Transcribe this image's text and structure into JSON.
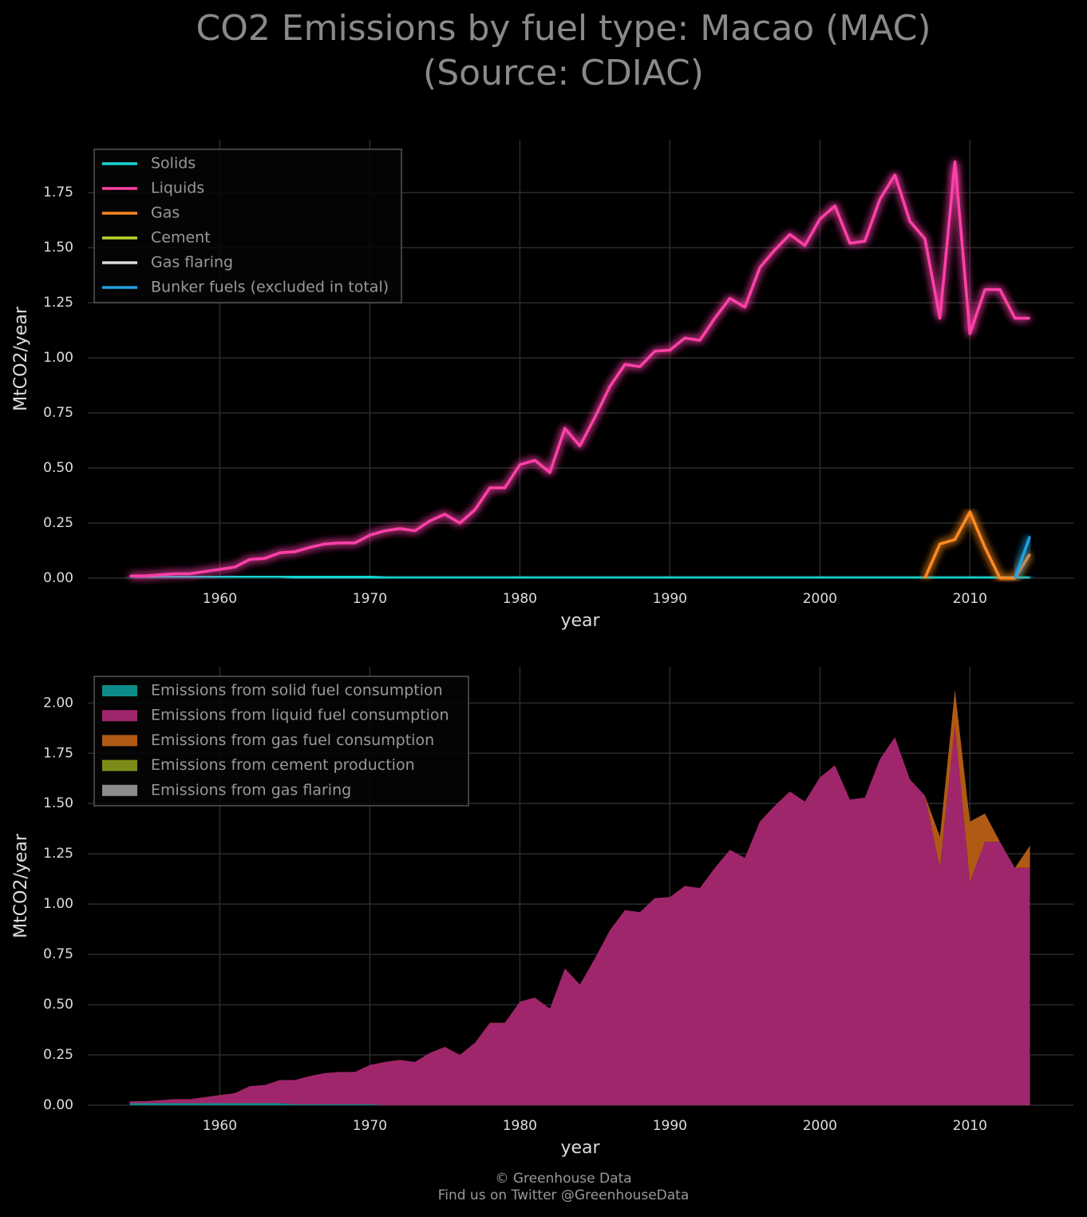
{
  "title_lines": [
    "CO2 Emissions by fuel type: Macao (MAC)",
    "(Source: CDIAC)"
  ],
  "footer_lines": [
    "© Greenhouse Data",
    "Find us on Twitter @GreenhouseData"
  ],
  "chart_data": [
    {
      "type": "line",
      "xlabel": "year",
      "ylabel": "MtCO2/year",
      "x": [
        1954,
        1955,
        1956,
        1957,
        1958,
        1959,
        1960,
        1961,
        1962,
        1963,
        1964,
        1965,
        1966,
        1967,
        1968,
        1969,
        1970,
        1971,
        1972,
        1973,
        1974,
        1975,
        1976,
        1977,
        1978,
        1979,
        1980,
        1981,
        1982,
        1983,
        1984,
        1985,
        1986,
        1987,
        1988,
        1989,
        1990,
        1991,
        1992,
        1993,
        1994,
        1995,
        1996,
        1997,
        1998,
        1999,
        2000,
        2001,
        2002,
        2003,
        2004,
        2005,
        2006,
        2007,
        2008,
        2009,
        2010,
        2011,
        2012,
        2013,
        2014
      ],
      "xlim": [
        1951.2,
        2016.9
      ],
      "ylim": [
        0,
        1.99
      ],
      "xticks": [
        1960,
        1970,
        1980,
        1990,
        2000,
        2010
      ],
      "yticks": [
        {
          "value": 0,
          "label": "0.00"
        },
        {
          "value": 0.25,
          "label": "0.25"
        },
        {
          "value": 0.5,
          "label": "0.50"
        },
        {
          "value": 0.75,
          "label": "0.75"
        },
        {
          "value": 1,
          "label": "1.00"
        },
        {
          "value": 1.25,
          "label": "1.25"
        },
        {
          "value": 1.5,
          "label": "1.50"
        },
        {
          "value": 1.75,
          "label": "1.75"
        }
      ],
      "grid": true,
      "legend": "upper left",
      "series": [
        {
          "name": "Solids",
          "color": "#19d3d3",
          "values": [
            0.01,
            0.01,
            0.01,
            0.01,
            0.01,
            0.01,
            0.01,
            0.01,
            0.01,
            0.01,
            0.01,
            0.005,
            0.005,
            0.005,
            0.005,
            0.005,
            0.005,
            0,
            0,
            0,
            0,
            0,
            0,
            0,
            0,
            0,
            0,
            0,
            0,
            0,
            0,
            0,
            0,
            0,
            0,
            0,
            0,
            0,
            0,
            0,
            0,
            0,
            0,
            0,
            0,
            0,
            0,
            0,
            0,
            0,
            0,
            0,
            0,
            0,
            0,
            0,
            0,
            0,
            0,
            0,
            0
          ]
        },
        {
          "name": "Liquids",
          "color": "#ff40a8",
          "values": [
            0.01,
            0.01,
            0.015,
            0.02,
            0.02,
            0.03,
            0.04,
            0.05,
            0.085,
            0.09,
            0.115,
            0.12,
            0.14,
            0.155,
            0.16,
            0.16,
            0.195,
            0.215,
            0.225,
            0.215,
            0.26,
            0.29,
            0.25,
            0.31,
            0.41,
            0.41,
            0.515,
            0.535,
            0.48,
            0.68,
            0.6,
            0.73,
            0.87,
            0.97,
            0.96,
            1.03,
            1.035,
            1.09,
            1.08,
            1.18,
            1.27,
            1.23,
            1.41,
            1.49,
            1.56,
            1.51,
            1.63,
            1.69,
            1.52,
            1.53,
            1.72,
            1.83,
            1.62,
            1.54,
            1.18,
            1.89,
            1.11,
            1.31,
            1.31,
            1.18,
            1.18
          ]
        },
        {
          "name": "Gas",
          "color": "#ff8a22",
          "values": [
            null,
            null,
            null,
            null,
            null,
            null,
            null,
            null,
            null,
            null,
            null,
            null,
            null,
            null,
            null,
            null,
            null,
            null,
            null,
            null,
            null,
            null,
            null,
            null,
            null,
            null,
            null,
            null,
            null,
            null,
            null,
            null,
            null,
            null,
            null,
            null,
            null,
            null,
            null,
            null,
            null,
            null,
            null,
            null,
            null,
            null,
            null,
            null,
            null,
            null,
            null,
            null,
            null,
            0,
            0.155,
            0.175,
            0.3,
            0.14,
            0,
            0,
            0.11
          ]
        },
        {
          "name": "Cement",
          "color": "#bcd42c",
          "values": [
            0,
            0,
            0,
            0,
            0,
            0,
            0,
            0,
            0,
            0,
            0,
            0,
            0,
            0,
            0,
            0,
            0,
            0,
            0,
            0,
            0,
            0,
            0,
            0,
            0,
            0,
            0,
            0,
            0,
            0,
            0,
            0,
            0,
            0,
            0,
            0,
            0,
            0,
            0,
            0,
            0,
            0,
            0,
            0,
            0,
            0,
            0,
            0,
            0,
            0,
            0,
            0,
            0,
            0,
            0,
            0,
            0,
            0,
            0,
            0,
            0
          ]
        },
        {
          "name": "Gas flaring",
          "color": "#dddddd",
          "values": [
            0,
            0,
            0,
            0,
            0,
            0,
            0,
            0,
            0,
            0,
            0,
            0,
            0,
            0,
            0,
            0,
            0,
            0,
            0,
            0,
            0,
            0,
            0,
            0,
            0,
            0,
            0,
            0,
            0,
            0,
            0,
            0,
            0,
            0,
            0,
            0,
            0,
            0,
            0,
            0,
            0,
            0,
            0,
            0,
            0,
            0,
            0,
            0,
            0,
            0,
            0,
            0,
            0,
            0,
            0,
            0,
            0,
            0,
            0,
            0,
            0
          ]
        },
        {
          "name": "Bunker fuels (excluded in total)",
          "color": "#20a0e0",
          "values": [
            null,
            null,
            null,
            null,
            null,
            null,
            null,
            null,
            null,
            null,
            null,
            null,
            null,
            null,
            null,
            null,
            null,
            null,
            null,
            null,
            null,
            null,
            null,
            null,
            null,
            null,
            null,
            null,
            null,
            null,
            null,
            null,
            null,
            null,
            null,
            null,
            null,
            null,
            null,
            null,
            null,
            null,
            null,
            null,
            null,
            null,
            null,
            null,
            null,
            null,
            null,
            null,
            null,
            null,
            null,
            null,
            null,
            null,
            null,
            0,
            0.19
          ]
        }
      ]
    },
    {
      "type": "stacked_area",
      "xlabel": "year",
      "ylabel": "MtCO2/year",
      "x": [
        1954,
        1955,
        1956,
        1957,
        1958,
        1959,
        1960,
        1961,
        1962,
        1963,
        1964,
        1965,
        1966,
        1967,
        1968,
        1969,
        1970,
        1971,
        1972,
        1973,
        1974,
        1975,
        1976,
        1977,
        1978,
        1979,
        1980,
        1981,
        1982,
        1983,
        1984,
        1985,
        1986,
        1987,
        1988,
        1989,
        1990,
        1991,
        1992,
        1993,
        1994,
        1995,
        1996,
        1997,
        1998,
        1999,
        2000,
        2001,
        2002,
        2003,
        2004,
        2005,
        2006,
        2007,
        2008,
        2009,
        2010,
        2011,
        2012,
        2013,
        2014
      ],
      "xlim": [
        1951.2,
        2016.9
      ],
      "ylim": [
        0,
        2.18
      ],
      "xticks": [
        1960,
        1970,
        1980,
        1990,
        2000,
        2010
      ],
      "yticks": [
        {
          "value": 0,
          "label": "0.00"
        },
        {
          "value": 0.25,
          "label": "0.25"
        },
        {
          "value": 0.5,
          "label": "0.50"
        },
        {
          "value": 0.75,
          "label": "0.75"
        },
        {
          "value": 1,
          "label": "1.00"
        },
        {
          "value": 1.25,
          "label": "1.25"
        },
        {
          "value": 1.5,
          "label": "1.50"
        },
        {
          "value": 1.75,
          "label": "1.75"
        },
        {
          "value": 2,
          "label": "2.00"
        }
      ],
      "grid": true,
      "legend": "upper left",
      "series": [
        {
          "name": "Emissions from solid fuel consumption",
          "color": "#0e8c8c",
          "values": [
            0.01,
            0.01,
            0.01,
            0.01,
            0.01,
            0.01,
            0.01,
            0.01,
            0.01,
            0.01,
            0.01,
            0.005,
            0.005,
            0.005,
            0.005,
            0.005,
            0.005,
            0,
            0,
            0,
            0,
            0,
            0,
            0,
            0,
            0,
            0,
            0,
            0,
            0,
            0,
            0,
            0,
            0,
            0,
            0,
            0,
            0,
            0,
            0,
            0,
            0,
            0,
            0,
            0,
            0,
            0,
            0,
            0,
            0,
            0,
            0,
            0,
            0,
            0,
            0,
            0,
            0,
            0,
            0,
            0
          ]
        },
        {
          "name": "Emissions from liquid fuel consumption",
          "color": "#a0266b",
          "values": [
            0.01,
            0.01,
            0.015,
            0.02,
            0.02,
            0.03,
            0.04,
            0.05,
            0.085,
            0.09,
            0.115,
            0.12,
            0.14,
            0.155,
            0.16,
            0.16,
            0.195,
            0.215,
            0.225,
            0.215,
            0.26,
            0.29,
            0.25,
            0.31,
            0.41,
            0.41,
            0.515,
            0.535,
            0.48,
            0.68,
            0.6,
            0.73,
            0.87,
            0.97,
            0.96,
            1.03,
            1.035,
            1.09,
            1.08,
            1.18,
            1.27,
            1.23,
            1.41,
            1.49,
            1.56,
            1.51,
            1.63,
            1.69,
            1.52,
            1.53,
            1.72,
            1.83,
            1.62,
            1.54,
            1.18,
            1.89,
            1.11,
            1.31,
            1.31,
            1.18,
            1.18
          ]
        },
        {
          "name": "Emissions from gas fuel consumption",
          "color": "#b05a15",
          "values": [
            null,
            null,
            null,
            null,
            null,
            null,
            null,
            null,
            null,
            null,
            null,
            null,
            null,
            null,
            null,
            null,
            null,
            null,
            null,
            null,
            null,
            null,
            null,
            null,
            null,
            null,
            null,
            null,
            null,
            null,
            null,
            null,
            null,
            null,
            null,
            null,
            null,
            null,
            null,
            null,
            null,
            null,
            null,
            null,
            null,
            null,
            null,
            null,
            null,
            null,
            null,
            null,
            null,
            0,
            0.155,
            0.175,
            0.3,
            0.14,
            0,
            0,
            0.11
          ]
        },
        {
          "name": "Emissions from cement production",
          "color": "#7d8c18",
          "values": [
            0,
            0,
            0,
            0,
            0,
            0,
            0,
            0,
            0,
            0,
            0,
            0,
            0,
            0,
            0,
            0,
            0,
            0,
            0,
            0,
            0,
            0,
            0,
            0,
            0,
            0,
            0,
            0,
            0,
            0,
            0,
            0,
            0,
            0,
            0,
            0,
            0,
            0,
            0,
            0,
            0,
            0,
            0,
            0,
            0,
            0,
            0,
            0,
            0,
            0,
            0,
            0,
            0,
            0,
            0,
            0,
            0,
            0,
            0,
            0,
            0
          ]
        },
        {
          "name": "Emissions from gas flaring",
          "color": "#8c8c8c",
          "values": [
            0,
            0,
            0,
            0,
            0,
            0,
            0,
            0,
            0,
            0,
            0,
            0,
            0,
            0,
            0,
            0,
            0,
            0,
            0,
            0,
            0,
            0,
            0,
            0,
            0,
            0,
            0,
            0,
            0,
            0,
            0,
            0,
            0,
            0,
            0,
            0,
            0,
            0,
            0,
            0,
            0,
            0,
            0,
            0,
            0,
            0,
            0,
            0,
            0,
            0,
            0,
            0,
            0,
            0,
            0,
            0,
            0,
            0,
            0,
            0,
            0
          ]
        }
      ]
    }
  ]
}
